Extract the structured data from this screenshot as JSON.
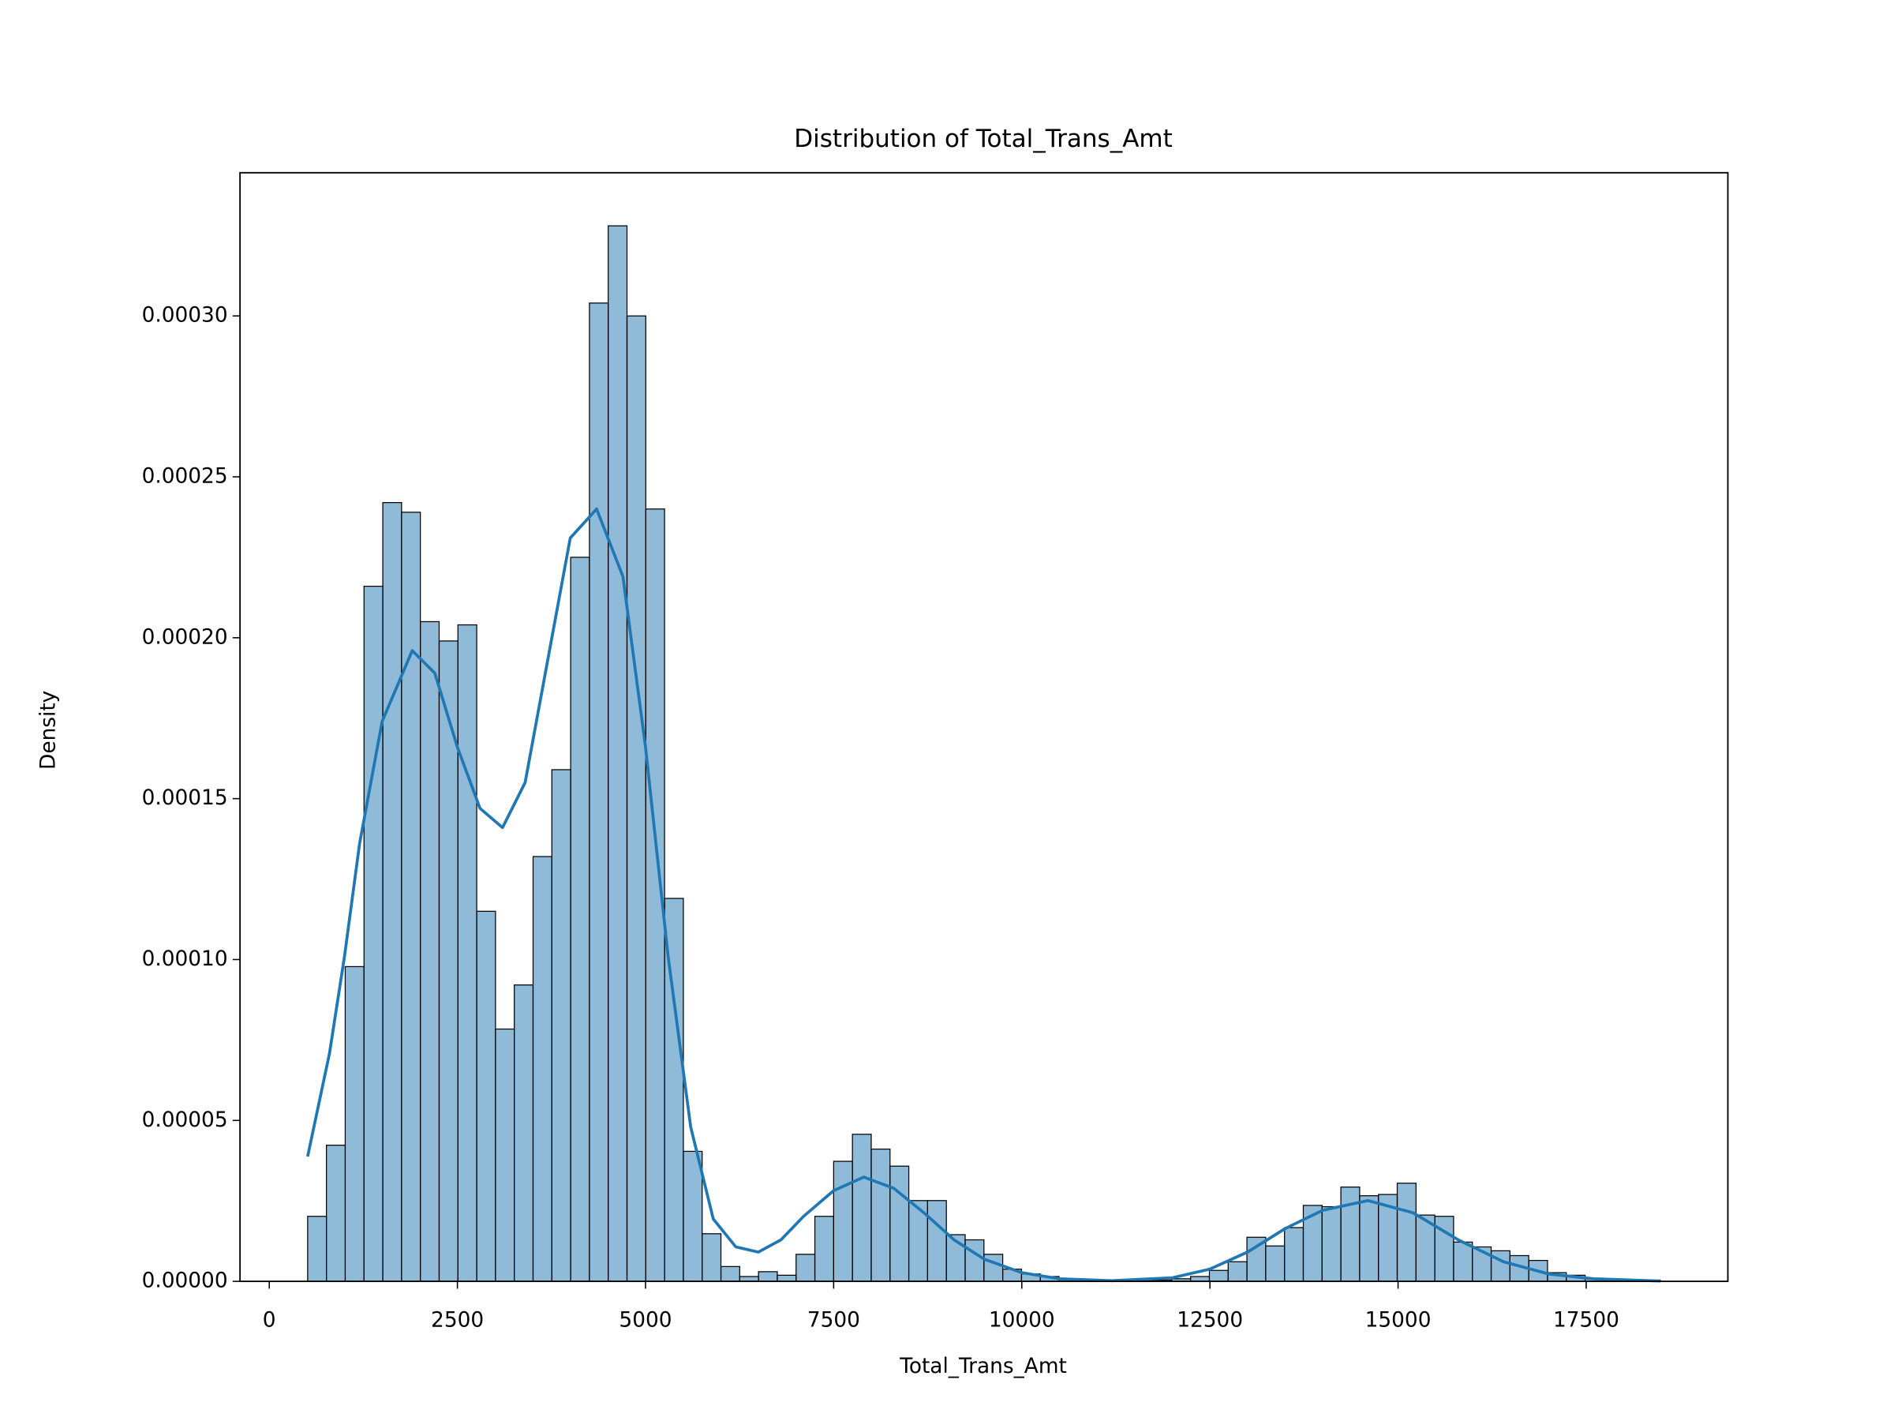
{
  "chart_data": {
    "type": "histogram",
    "title": "Distribution of Total_Trans_Amt",
    "xlabel": "Total_Trans_Amt",
    "ylabel": "Density",
    "bins": [
      510.0,
      759.6,
      1009.3,
      1258.9,
      1508.6,
      1758.2,
      2007.8,
      2257.5,
      2507.1,
      2756.8,
      3006.4,
      3256.0,
      3505.7,
      3755.3,
      4004.9,
      4254.6,
      4504.2,
      4753.9,
      5003.5,
      5253.1,
      5502.8,
      5752.4,
      6002.1,
      6251.7,
      6501.3,
      6751.0,
      7000.6,
      7250.3,
      7499.9,
      7749.5,
      7999.2,
      8248.8,
      8498.4,
      8748.1,
      8997.7,
      9247.4,
      9497.0,
      9746.6,
      9996.3,
      10245.9,
      10495.6,
      10745.2,
      10994.8,
      11244.5,
      11494.1,
      11743.8,
      11993.4,
      12243.0,
      12492.7,
      12742.3,
      12991.9,
      13241.6,
      13491.2,
      13740.9,
      13990.5,
      14240.1,
      14489.8,
      14739.4,
      14989.1,
      15238.7,
      15488.3,
      15738.0,
      15987.6,
      16237.3,
      16486.9,
      16736.5,
      16986.2,
      17235.8,
      17485.5,
      17735.1,
      17984.7,
      18234.4,
      18484.0
    ],
    "values": [
      2.02e-05,
      4.23e-05,
      9.78e-05,
      0.000216,
      0.000242,
      0.000239,
      0.000205,
      0.000199,
      0.000204,
      0.000115,
      7.84e-05,
      9.21e-05,
      0.000132,
      0.000159,
      0.000225,
      0.000304,
      0.000328,
      0.0003,
      0.00024,
      0.000119,
      4.04e-05,
      1.48e-05,
      4.6e-06,
      1.5e-06,
      3e-06,
      1.9e-06,
      8.4e-06,
      2.02e-05,
      3.73e-05,
      4.57e-05,
      4.11e-05,
      3.58e-05,
      2.51e-05,
      2.51e-05,
      1.45e-05,
      1.29e-05,
      8.4e-06,
      3.8e-06,
      2.3e-06,
      1.5e-06,
      8e-07,
      4e-07,
      2e-07,
      2e-07,
      2e-07,
      4e-07,
      8e-07,
      1.5e-06,
      3.4e-06,
      6.1e-06,
      1.37e-05,
      1.1e-05,
      1.67e-05,
      2.36e-05,
      2.32e-05,
      2.93e-05,
      2.66e-05,
      2.7e-05,
      3.05e-05,
      2.06e-05,
      2.02e-05,
      1.22e-05,
      1.07e-05,
      9.5e-06,
      8e-06,
      6.5e-06,
      2.7e-06,
      1.9e-06,
      8e-07,
      4e-07,
      4e-07,
      4e-07
    ],
    "color": "#1f77b4",
    "kde": {
      "color": "#1f77b4",
      "x": [
        510,
        800,
        1000,
        1200,
        1500,
        1900,
        2200,
        2500,
        2800,
        3100,
        3400,
        3700,
        4000,
        4350,
        4700,
        5000,
        5300,
        5600,
        5900,
        6200,
        6500,
        6800,
        7100,
        7500,
        7900,
        8300,
        8700,
        9100,
        9500,
        10000,
        10500,
        11200,
        12000,
        12500,
        13000,
        13500,
        14000,
        14600,
        15200,
        15800,
        16400,
        17000,
        17600,
        18484
      ],
      "y": [
        3.88e-05,
        7.08e-05,
        0.000101,
        0.000136,
        0.000174,
        0.000196,
        0.000189,
        0.000166,
        0.000147,
        0.000141,
        0.000155,
        0.000193,
        0.000231,
        0.00024,
        0.000219,
        0.000166,
        0.000101,
        4.8e-05,
        1.94e-05,
        1.07e-05,
        9.1e-06,
        1.29e-05,
        2.02e-05,
        2.82e-05,
        3.24e-05,
        2.89e-05,
        2.13e-05,
        1.29e-05,
        6.9e-06,
        2.7e-06,
        8e-07,
        2e-07,
        1.1e-06,
        3.8e-06,
        9.1e-06,
        1.64e-05,
        2.21e-05,
        2.51e-05,
        2.13e-05,
        1.29e-05,
        6.1e-06,
        2.3e-06,
        8e-07,
        1e-07
      ]
    },
    "xlim": [
      -388.7,
      19382.7
    ],
    "ylim": [
      0,
      0.0003445
    ],
    "xticks": [
      0,
      2500,
      5000,
      7500,
      10000,
      12500,
      15000,
      17500
    ],
    "yticks": [
      {
        "value": 0,
        "label": "0.00000"
      },
      {
        "value": 5e-05,
        "label": "0.00005"
      },
      {
        "value": 0.0001,
        "label": "0.00010"
      },
      {
        "value": 0.00015,
        "label": "0.00015"
      },
      {
        "value": 0.0002,
        "label": "0.00020"
      },
      {
        "value": 0.00025,
        "label": "0.00025"
      },
      {
        "value": 0.0003,
        "label": "0.00030"
      }
    ]
  }
}
